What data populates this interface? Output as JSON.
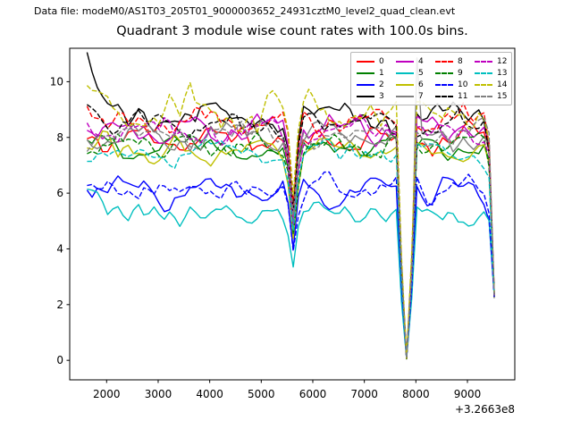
{
  "header": {
    "datafile": "Data file: modeM0/AS1T03_205T01_9000003652_24931cztM0_level2_quad_clean.evt"
  },
  "chart_data": {
    "type": "line",
    "title": "Quadrant 3 module wise count rates with 100.0s bins.",
    "xlabel": "",
    "ylabel": "",
    "bin_size_seconds": 100.0,
    "x_offset_text": "+3.2663e8",
    "xlim": [
      1284,
      9919
    ],
    "ylim": [
      -0.7,
      11.2
    ],
    "x_ticks": [
      2000,
      3000,
      4000,
      5000,
      6000,
      7000,
      8000,
      9000
    ],
    "y_ticks": [
      0,
      2,
      4,
      6,
      8,
      10
    ],
    "grid": false,
    "legend_position": "upper right",
    "legend_columns": 4,
    "x_start": 1620,
    "x_step": 100,
    "n_points": 80,
    "profile": [
      [
        1620,
        1
      ],
      [
        5420,
        1
      ],
      [
        5520,
        0.9
      ],
      [
        5620,
        0.62
      ],
      [
        5720,
        0.88
      ],
      [
        5820,
        1
      ],
      [
        7620,
        1
      ],
      [
        7720,
        0.4
      ],
      [
        7820,
        0.005
      ],
      [
        7920,
        0.4
      ],
      [
        8020,
        1
      ],
      [
        9320,
        1
      ],
      [
        9420,
        0.92
      ],
      [
        9520,
        0.3
      ]
    ],
    "end_value": 2.35,
    "deep_dip_floor": 0.05,
    "series": [
      {
        "label": "0",
        "color": "#ff0000",
        "dash": "solid",
        "base": 7.95,
        "amp": 0.3,
        "boost": 0.0,
        "seed": 11
      },
      {
        "label": "1",
        "color": "#008000",
        "dash": "solid",
        "base": 7.75,
        "amp": 0.26,
        "boost": 0.0,
        "seed": 22
      },
      {
        "label": "2",
        "color": "#0000ff",
        "dash": "solid",
        "base": 6.0,
        "amp": 0.3,
        "boost": 0.6,
        "seed": 33
      },
      {
        "label": "3",
        "color": "#000000",
        "dash": "solid",
        "base": 8.75,
        "amp": 0.3,
        "boost": 1.75,
        "seed": 44
      },
      {
        "label": "4",
        "color": "#bf00bf",
        "dash": "solid",
        "base": 8.35,
        "amp": 0.3,
        "boost": 0.0,
        "seed": 55
      },
      {
        "label": "5",
        "color": "#00bfbf",
        "dash": "solid",
        "base": 5.3,
        "amp": 0.28,
        "boost": 0.9,
        "seed": 66
      },
      {
        "label": "6",
        "color": "#bfbf00",
        "dash": "solid",
        "base": 7.6,
        "amp": 0.3,
        "boost": 0.0,
        "seed": 77
      },
      {
        "label": "7",
        "color": "#808080",
        "dash": "solid",
        "base": 8.05,
        "amp": 0.28,
        "boost": 0.0,
        "seed": 88,
        "spike": {
          "x": 8020,
          "value": 10.85
        }
      },
      {
        "label": "8",
        "color": "#ff0000",
        "dash": "dashed",
        "base": 8.55,
        "amp": 0.3,
        "boost": 0.85,
        "seed": 99
      },
      {
        "label": "9",
        "color": "#008000",
        "dash": "dashed",
        "base": 7.7,
        "amp": 0.26,
        "boost": 0.0,
        "seed": 110
      },
      {
        "label": "10",
        "color": "#0000ff",
        "dash": "dashed",
        "base": 6.15,
        "amp": 0.28,
        "boost": 0.5,
        "seed": 121
      },
      {
        "label": "11",
        "color": "#000000",
        "dash": "dashed",
        "base": 8.45,
        "amp": 0.28,
        "boost": 0.6,
        "seed": 132
      },
      {
        "label": "12",
        "color": "#bf00bf",
        "dash": "dashed",
        "base": 8.25,
        "amp": 0.3,
        "boost": 0.0,
        "seed": 143
      },
      {
        "label": "13",
        "color": "#00bfbf",
        "dash": "dashed",
        "base": 7.45,
        "amp": 0.28,
        "boost": 0.0,
        "seed": 154
      },
      {
        "label": "14",
        "color": "#bfbf00",
        "dash": "dashed",
        "base": 9.05,
        "amp": 0.45,
        "boost": 0.4,
        "seed": 165
      },
      {
        "label": "15",
        "color": "#808080",
        "dash": "dashed",
        "base": 8.15,
        "amp": 0.28,
        "boost": 0.0,
        "seed": 176
      }
    ]
  }
}
